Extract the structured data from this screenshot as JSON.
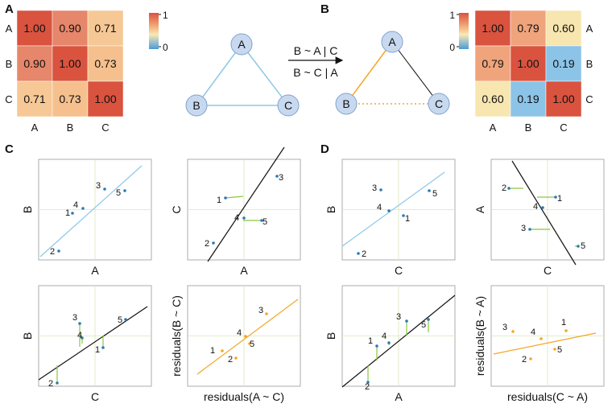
{
  "panel_labels": {
    "a": "A",
    "b": "B",
    "c": "C",
    "d": "D"
  },
  "colors": {
    "blue_line": "#8ec7e8",
    "black_line": "#111111",
    "orange_line": "#f5a623",
    "residual": "#8cc63f",
    "guide": "#d8e6b8",
    "node_fill": "#c8d9ef",
    "node_stroke": "#7ea3cf"
  },
  "colorbar": {
    "max": "1",
    "min": "0"
  },
  "matrix_a": {
    "rows": [
      "A",
      "B",
      "C"
    ],
    "cols": [
      "A",
      "B",
      "C"
    ],
    "values": [
      [
        "1.00",
        "0.90",
        "0.71"
      ],
      [
        "0.90",
        "1.00",
        "0.73"
      ],
      [
        "0.71",
        "0.73",
        "1.00"
      ]
    ],
    "colors": [
      [
        "#d9533f",
        "#e6866a",
        "#f6c895"
      ],
      [
        "#e6866a",
        "#d9533f",
        "#f5c08d"
      ],
      [
        "#f6c895",
        "#f5c08d",
        "#d9533f"
      ]
    ]
  },
  "matrix_b": {
    "rows": [
      "A",
      "B",
      "C"
    ],
    "cols": [
      "A",
      "B",
      "C"
    ],
    "values": [
      [
        "1.00",
        "0.79",
        "0.60"
      ],
      [
        "0.79",
        "1.00",
        "0.19"
      ],
      [
        "0.60",
        "0.19",
        "1.00"
      ]
    ],
    "colors": [
      [
        "#d9533f",
        "#f0a47c",
        "#f8e6b0"
      ],
      [
        "#f0a47c",
        "#d9533f",
        "#8cc4e8"
      ],
      [
        "#f8e6b0",
        "#8cc4e8",
        "#d9533f"
      ]
    ]
  },
  "graph_a": {
    "nodes": [
      "A",
      "B",
      "C"
    ]
  },
  "graph_b": {
    "nodes": [
      "A",
      "B",
      "C"
    ]
  },
  "arrow": {
    "line1": "B ~ A | C",
    "line2": "B ~ C | A"
  },
  "scatter": [
    {
      "id": "c1",
      "xlabel": "A",
      "ylabel": "B",
      "line": "blue",
      "residuals": false,
      "labels": [
        "1",
        "2",
        "3",
        "4",
        "5"
      ]
    },
    {
      "id": "c2",
      "xlabel": "A",
      "ylabel": "C",
      "line": "black",
      "residuals": true,
      "labels": [
        "1",
        "2",
        "3",
        "4",
        "5"
      ]
    },
    {
      "id": "c3",
      "xlabel": "C",
      "ylabel": "B",
      "line": "black",
      "residuals": true,
      "labels": [
        "1",
        "2",
        "3",
        "4",
        "5"
      ]
    },
    {
      "id": "c4",
      "xlabel": "residuals(A ~ C)",
      "ylabel": "residuals(B ~ C)",
      "line": "orange",
      "residuals": false,
      "labels": [
        "1",
        "2",
        "3",
        "4",
        "5"
      ]
    },
    {
      "id": "d1",
      "xlabel": "C",
      "ylabel": "B",
      "line": "blue",
      "residuals": false,
      "labels": [
        "1",
        "2",
        "3",
        "4",
        "5"
      ]
    },
    {
      "id": "d2",
      "xlabel": "C",
      "ylabel": "A",
      "line": "black",
      "residuals": true,
      "labels": [
        "1",
        "2",
        "3",
        "4",
        "5"
      ]
    },
    {
      "id": "d3",
      "xlabel": "A",
      "ylabel": "B",
      "line": "black",
      "residuals": true,
      "labels": [
        "1",
        "2",
        "3",
        "4",
        "5"
      ]
    },
    {
      "id": "d4",
      "xlabel": "residuals(C ~ A)",
      "ylabel": "residuals(B ~ A)",
      "line": "orange",
      "residuals": false,
      "labels": [
        "1",
        "2",
        "3",
        "4",
        "5"
      ]
    }
  ]
}
